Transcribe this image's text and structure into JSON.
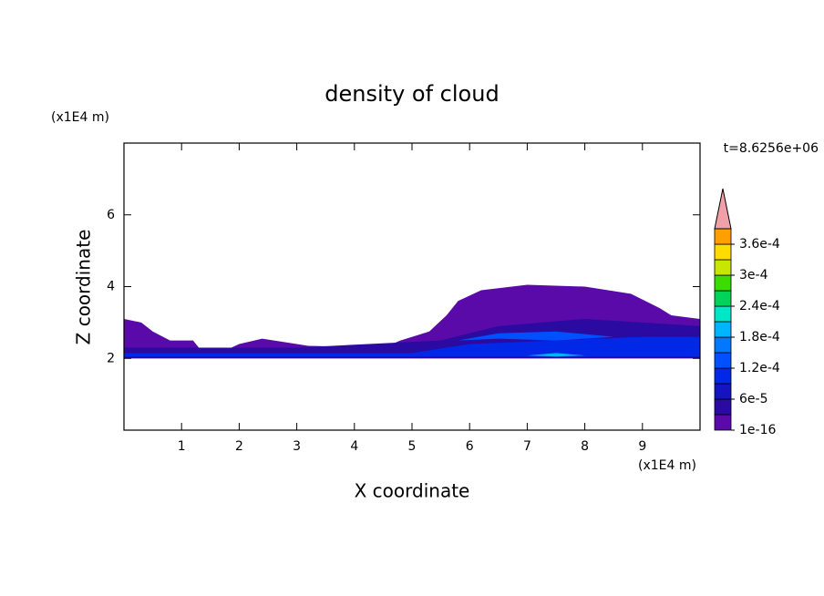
{
  "chart_data": {
    "type": "contour",
    "title": "density of cloud",
    "xlabel": "X coordinate",
    "ylabel": "Z coordinate",
    "xunit": "(x1E4 m)",
    "yunit": "(x1E4 m)",
    "time_label": "t=8.6256e+06",
    "xlim": [
      0,
      10
    ],
    "ylim": [
      0,
      8
    ],
    "xticks": [
      1,
      2,
      3,
      4,
      5,
      6,
      7,
      8,
      9
    ],
    "yticks": [
      2,
      4,
      6
    ],
    "levels": [
      1e-16,
      3e-05,
      6e-05,
      9e-05,
      0.00012,
      0.00015,
      0.00018,
      0.00021,
      0.00024,
      0.00027,
      0.0003,
      0.00033,
      0.00036,
      0.00039
    ],
    "colors": [
      "#5a0aa8",
      "#2a0aa0",
      "#1414c0",
      "#0028e6",
      "#0050ff",
      "#0078ff",
      "#00b4ff",
      "#00e6c8",
      "#00d25a",
      "#3cdc00",
      "#c8e600",
      "#ffdc00",
      "#ffa000"
    ],
    "over_color": "#f0a0a8",
    "colorbar_ticks": [
      {
        "value": 1e-16,
        "label": "1e-16"
      },
      {
        "value": 6e-05,
        "label": "6e-5"
      },
      {
        "value": 0.00012,
        "label": "1.2e-4"
      },
      {
        "value": 0.00018,
        "label": "1.8e-4"
      },
      {
        "value": 0.00024,
        "label": "2.4e-4"
      },
      {
        "value": 0.0003,
        "label": "3e-4"
      },
      {
        "value": 0.00036,
        "label": "3.6e-4"
      }
    ],
    "regions": [
      {
        "level": 1e-16,
        "x": [
          0,
          0,
          0.3,
          0.5,
          0.8,
          1.2,
          1.3,
          1.8,
          2.0,
          2.4,
          3.0,
          3.2,
          4.5,
          4.8,
          5.3,
          5.6,
          5.8,
          6.2,
          7.0,
          8.0,
          8.8,
          9.3,
          9.5,
          10,
          10
        ],
        "y": [
          2.0,
          3.1,
          3.0,
          2.75,
          2.5,
          2.5,
          2.3,
          2.25,
          2.4,
          2.55,
          2.4,
          2.35,
          2.3,
          2.5,
          2.75,
          3.2,
          3.6,
          3.9,
          4.05,
          4.0,
          3.8,
          3.4,
          3.2,
          3.1,
          2.0
        ]
      },
      {
        "level": 3e-05,
        "x": [
          0,
          0,
          3,
          5.5,
          6.5,
          8,
          10,
          10
        ],
        "y": [
          2.0,
          2.3,
          2.3,
          2.5,
          2.9,
          3.1,
          2.9,
          2.0
        ]
      },
      {
        "level": 9e-05,
        "x": [
          0,
          0,
          5,
          6,
          7.5,
          9,
          10,
          10
        ],
        "y": [
          2.05,
          2.15,
          2.15,
          2.4,
          2.5,
          2.6,
          2.6,
          2.05
        ]
      },
      {
        "level": 0.00012,
        "x": [
          5.8,
          6.5,
          7.5,
          8.5,
          7.5,
          6.5
        ],
        "y": [
          2.5,
          2.7,
          2.75,
          2.6,
          2.5,
          2.55
        ]
      },
      {
        "level": 0.00018,
        "x": [
          7,
          7.5,
          8,
          7.5
        ],
        "y": [
          2.08,
          2.15,
          2.08,
          2.05
        ]
      }
    ]
  }
}
